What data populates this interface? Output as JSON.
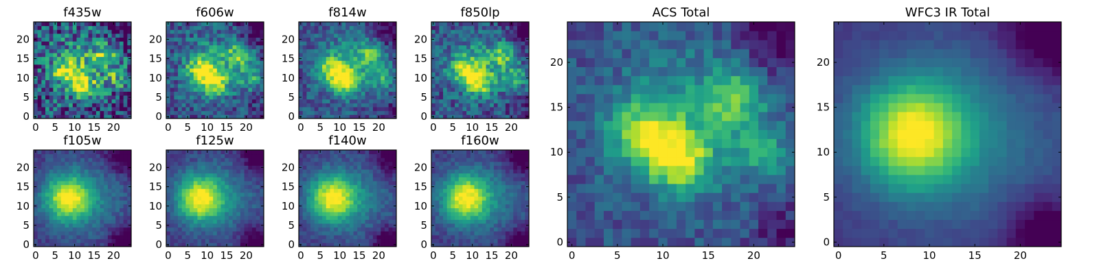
{
  "chart_data": [
    {
      "type": "heatmap",
      "title": "f435w",
      "x_ticks": [
        0,
        5,
        10,
        15,
        20
      ],
      "y_ticks": [
        0,
        5,
        10,
        15,
        20
      ],
      "xlim": [
        -0.5,
        24.5
      ],
      "ylim": [
        -0.5,
        24.5
      ],
      "grid": false,
      "colormap": "viridis"
    },
    {
      "type": "heatmap",
      "title": "f606w",
      "x_ticks": [
        0,
        5,
        10,
        15,
        20
      ],
      "y_ticks": [
        0,
        5,
        10,
        15,
        20
      ],
      "xlim": [
        -0.5,
        24.5
      ],
      "ylim": [
        -0.5,
        24.5
      ],
      "grid": false,
      "colormap": "viridis"
    },
    {
      "type": "heatmap",
      "title": "f814w",
      "x_ticks": [
        0,
        5,
        10,
        15,
        20
      ],
      "y_ticks": [
        0,
        5,
        10,
        15,
        20
      ],
      "xlim": [
        -0.5,
        24.5
      ],
      "ylim": [
        -0.5,
        24.5
      ],
      "grid": false,
      "colormap": "viridis"
    },
    {
      "type": "heatmap",
      "title": "f850lp",
      "x_ticks": [
        0,
        5,
        10,
        15,
        20
      ],
      "y_ticks": [
        0,
        5,
        10,
        15,
        20
      ],
      "xlim": [
        -0.5,
        24.5
      ],
      "ylim": [
        -0.5,
        24.5
      ],
      "grid": false,
      "colormap": "viridis"
    },
    {
      "type": "heatmap",
      "title": "f105w",
      "x_ticks": [
        0,
        5,
        10,
        15,
        20
      ],
      "y_ticks": [
        0,
        5,
        10,
        15,
        20
      ],
      "xlim": [
        -0.5,
        24.5
      ],
      "ylim": [
        -0.5,
        24.5
      ],
      "grid": false,
      "colormap": "viridis"
    },
    {
      "type": "heatmap",
      "title": "f125w",
      "x_ticks": [
        0,
        5,
        10,
        15,
        20
      ],
      "y_ticks": [
        0,
        5,
        10,
        15,
        20
      ],
      "xlim": [
        -0.5,
        24.5
      ],
      "ylim": [
        -0.5,
        24.5
      ],
      "grid": false,
      "colormap": "viridis"
    },
    {
      "type": "heatmap",
      "title": "f140w",
      "x_ticks": [
        0,
        5,
        10,
        15,
        20
      ],
      "y_ticks": [
        0,
        5,
        10,
        15,
        20
      ],
      "xlim": [
        -0.5,
        24.5
      ],
      "ylim": [
        -0.5,
        24.5
      ],
      "grid": false,
      "colormap": "viridis"
    },
    {
      "type": "heatmap",
      "title": "f160w",
      "x_ticks": [
        0,
        5,
        10,
        15,
        20
      ],
      "y_ticks": [
        0,
        5,
        10,
        15,
        20
      ],
      "xlim": [
        -0.5,
        24.5
      ],
      "ylim": [
        -0.5,
        24.5
      ],
      "grid": false,
      "colormap": "viridis"
    },
    {
      "type": "heatmap",
      "title": "ACS Total",
      "x_ticks": [
        0,
        5,
        10,
        15,
        20
      ],
      "y_ticks": [
        0,
        5,
        10,
        15,
        20
      ],
      "xlim": [
        -0.5,
        24.5
      ],
      "ylim": [
        -0.5,
        24.5
      ],
      "grid": false,
      "colormap": "viridis"
    },
    {
      "type": "heatmap",
      "title": "WFC3 IR Total",
      "x_ticks": [
        0,
        5,
        10,
        15,
        20
      ],
      "y_ticks": [
        0,
        5,
        10,
        15,
        20
      ],
      "xlim": [
        -0.5,
        24.5
      ],
      "ylim": [
        -0.5,
        24.5
      ],
      "grid": false,
      "colormap": "viridis"
    }
  ]
}
